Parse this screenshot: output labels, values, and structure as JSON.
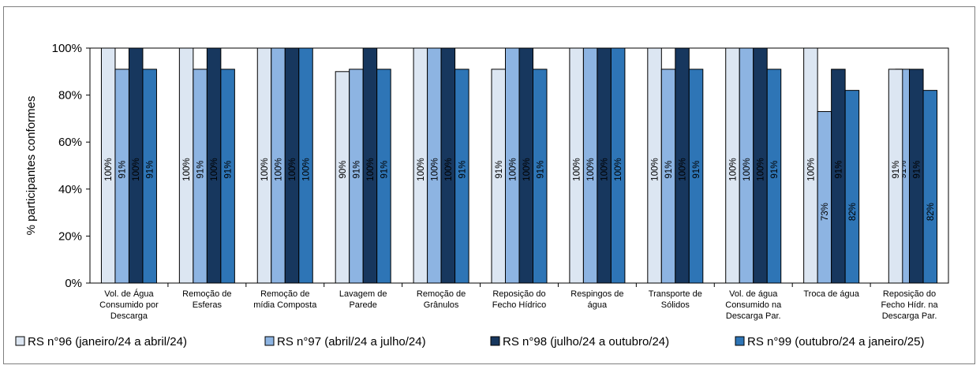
{
  "chart_data": {
    "type": "bar",
    "title": "",
    "xlabel": "",
    "ylabel": "% participantes conformes",
    "ylim": [
      0,
      100
    ],
    "yticks": [
      "0%",
      "20%",
      "40%",
      "60%",
      "80%",
      "100%"
    ],
    "grid": false,
    "legend_position": "bottom",
    "categories": [
      [
        "Vol. de Água",
        "Consumido por",
        "Descarga"
      ],
      [
        "Remoção de",
        "Esferas"
      ],
      [
        "Remoção de",
        "mídia Composta"
      ],
      [
        "Lavagem de",
        "Parede"
      ],
      [
        "Remoção de",
        "Grânulos"
      ],
      [
        "Reposição do",
        "Fecho Hídrico"
      ],
      [
        "Respingos de",
        "água"
      ],
      [
        "Transporte de",
        "Sólidos"
      ],
      [
        "Vol. de água",
        "Consumido na",
        "Descarga Par."
      ],
      [
        "Troca de água"
      ],
      [
        "Reposição do",
        "Fecho Hídr. na",
        "Descarga Par."
      ]
    ],
    "series": [
      {
        "name": "RS n°96 (janeiro/24 a abril/24)",
        "color": "#dce6f2",
        "values": [
          100,
          100,
          100,
          90,
          100,
          91,
          100,
          100,
          100,
          100,
          null
        ],
        "labels": [
          "100%",
          "100%",
          "100%",
          "90%",
          "100%",
          "91%",
          "100%",
          "100%",
          "100%",
          "100%",
          ""
        ]
      },
      {
        "name": "RS n°97 (abril/24 a julho/24)",
        "color": "#8db4e2",
        "values": [
          91,
          91,
          100,
          91,
          100,
          100,
          100,
          91,
          100,
          73,
          91
        ],
        "labels": [
          "91%",
          "91%",
          "100%",
          "91%",
          "100%",
          "100%",
          "100%",
          "91%",
          "100%",
          "73%",
          "91%"
        ]
      },
      {
        "name": "RS n°98 (julho/24 a outubro/24)",
        "color": "#17375e",
        "values": [
          100,
          100,
          100,
          100,
          100,
          100,
          100,
          100,
          100,
          91,
          91
        ],
        "labels": [
          "100%",
          "100%",
          "100%",
          "100%",
          "100%",
          "100%",
          "100%",
          "100%",
          "100%",
          "91%",
          "91%"
        ]
      },
      {
        "name": "RS n°99 (outubro/24 a janeiro/25)",
        "color": "#2e75b6",
        "values": [
          91,
          91,
          100,
          91,
          91,
          91,
          100,
          91,
          91,
          82,
          82
        ],
        "labels": [
          "91%",
          "91%",
          "100%",
          "91%",
          "91%",
          "91%",
          "100%",
          "91%",
          "91%",
          "82%",
          "82%"
        ]
      }
    ],
    "extra_bar": {
      "category_index": 10,
      "value": 91,
      "color": "#dce6f2",
      "label": "91%"
    }
  }
}
